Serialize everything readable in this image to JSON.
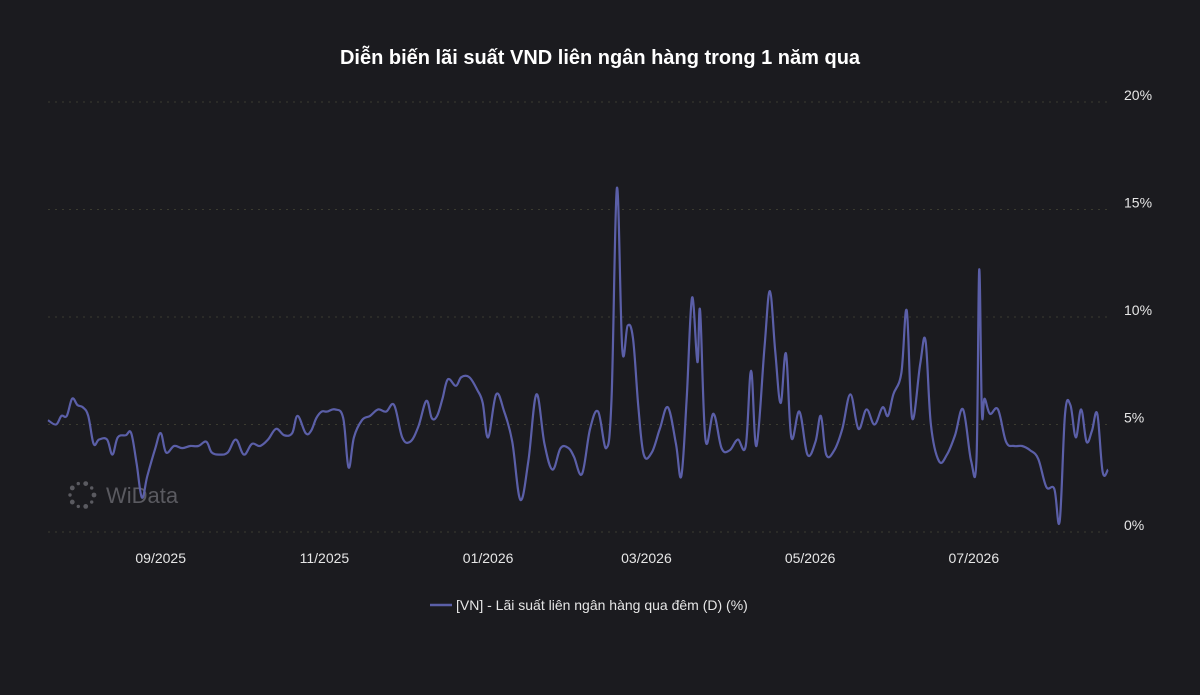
{
  "watermark": {
    "text": "WiData",
    "icon": "dotted-circle-logo-icon"
  },
  "chart_data": {
    "type": "line",
    "title": "Diễn biến lãi suất VND liên ngân hàng trong 1 năm qua",
    "ylim": [
      0,
      20
    ],
    "yticks": [
      {
        "value": 0,
        "label": "0%"
      },
      {
        "value": 5,
        "label": "5%"
      },
      {
        "value": 10,
        "label": "10%"
      },
      {
        "value": 15,
        "label": "15%"
      },
      {
        "value": 20,
        "label": "20%"
      }
    ],
    "xlim": [
      "2025-07-21",
      "2026-08-20"
    ],
    "xticks": [
      {
        "date": "2025-09-01",
        "label": "09/2025"
      },
      {
        "date": "2025-11-01",
        "label": "11/2025"
      },
      {
        "date": "2026-01-01",
        "label": "01/2026"
      },
      {
        "date": "2026-03-01",
        "label": "03/2026"
      },
      {
        "date": "2026-05-01",
        "label": "05/2026"
      },
      {
        "date": "2026-07-01",
        "label": "07/2026"
      }
    ],
    "grid": true,
    "legend_position": "bottom-center",
    "colors": {
      "background": "#1b1b1f",
      "line": "#5b5fa8",
      "grid": "#3b3b30"
    },
    "series": [
      {
        "name": "[VN] - Lãi suất liên ngân hàng qua đêm (D) (%)",
        "color": "#5b5fa8",
        "points": [
          [
            "2025-07-21",
            5.2
          ],
          [
            "2025-07-24",
            5.0
          ],
          [
            "2025-07-26",
            5.4
          ],
          [
            "2025-07-28",
            5.4
          ],
          [
            "2025-07-30",
            6.2
          ],
          [
            "2025-08-01",
            5.9
          ],
          [
            "2025-08-03",
            5.8
          ],
          [
            "2025-08-05",
            5.4
          ],
          [
            "2025-08-07",
            4.1
          ],
          [
            "2025-08-09",
            4.3
          ],
          [
            "2025-08-12",
            4.3
          ],
          [
            "2025-08-14",
            3.6
          ],
          [
            "2025-08-16",
            4.4
          ],
          [
            "2025-08-19",
            4.5
          ],
          [
            "2025-08-21",
            4.6
          ],
          [
            "2025-08-23",
            3.2
          ],
          [
            "2025-08-25",
            1.6
          ],
          [
            "2025-08-27",
            2.6
          ],
          [
            "2025-08-30",
            3.9
          ],
          [
            "2025-09-01",
            4.6
          ],
          [
            "2025-09-03",
            3.7
          ],
          [
            "2025-09-06",
            4.0
          ],
          [
            "2025-09-09",
            3.9
          ],
          [
            "2025-09-12",
            4.0
          ],
          [
            "2025-09-15",
            4.0
          ],
          [
            "2025-09-18",
            4.2
          ],
          [
            "2025-09-20",
            3.7
          ],
          [
            "2025-09-23",
            3.6
          ],
          [
            "2025-09-26",
            3.7
          ],
          [
            "2025-09-29",
            4.3
          ],
          [
            "2025-10-02",
            3.6
          ],
          [
            "2025-10-05",
            4.1
          ],
          [
            "2025-10-08",
            4.0
          ],
          [
            "2025-10-11",
            4.3
          ],
          [
            "2025-10-14",
            4.8
          ],
          [
            "2025-10-17",
            4.5
          ],
          [
            "2025-10-20",
            4.6
          ],
          [
            "2025-10-22",
            5.4
          ],
          [
            "2025-10-25",
            4.6
          ],
          [
            "2025-10-27",
            4.7
          ],
          [
            "2025-10-29",
            5.3
          ],
          [
            "2025-10-31",
            5.6
          ],
          [
            "2025-11-02",
            5.6
          ],
          [
            "2025-11-05",
            5.7
          ],
          [
            "2025-11-08",
            5.3
          ],
          [
            "2025-11-10",
            3.0
          ],
          [
            "2025-11-12",
            4.4
          ],
          [
            "2025-11-15",
            5.2
          ],
          [
            "2025-11-18",
            5.4
          ],
          [
            "2025-11-21",
            5.7
          ],
          [
            "2025-11-24",
            5.6
          ],
          [
            "2025-11-27",
            5.9
          ],
          [
            "2025-11-30",
            4.4
          ],
          [
            "2025-12-03",
            4.2
          ],
          [
            "2025-12-06",
            4.9
          ],
          [
            "2025-12-09",
            6.1
          ],
          [
            "2025-12-11",
            5.3
          ],
          [
            "2025-12-13",
            5.4
          ],
          [
            "2025-12-15",
            6.2
          ],
          [
            "2025-12-17",
            7.1
          ],
          [
            "2025-12-20",
            6.8
          ],
          [
            "2025-12-22",
            7.2
          ],
          [
            "2025-12-25",
            7.2
          ],
          [
            "2025-12-28",
            6.6
          ],
          [
            "2025-12-30",
            6.0
          ],
          [
            "2026-01-01",
            4.4
          ],
          [
            "2026-01-04",
            6.4
          ],
          [
            "2026-01-07",
            5.6
          ],
          [
            "2026-01-10",
            4.2
          ],
          [
            "2026-01-13",
            1.5
          ],
          [
            "2026-01-16",
            3.3
          ],
          [
            "2026-01-19",
            6.4
          ],
          [
            "2026-01-22",
            4.1
          ],
          [
            "2026-01-25",
            2.9
          ],
          [
            "2026-01-28",
            3.9
          ],
          [
            "2026-01-31",
            3.9
          ],
          [
            "2026-02-02",
            3.5
          ],
          [
            "2026-02-05",
            2.7
          ],
          [
            "2026-02-08",
            4.8
          ],
          [
            "2026-02-11",
            5.6
          ],
          [
            "2026-02-14",
            3.9
          ],
          [
            "2026-02-16",
            6.2
          ],
          [
            "2026-02-18",
            16.0
          ],
          [
            "2026-02-20",
            8.5
          ],
          [
            "2026-02-22",
            9.6
          ],
          [
            "2026-02-24",
            9.0
          ],
          [
            "2026-02-26",
            5.8
          ],
          [
            "2026-02-28",
            3.6
          ],
          [
            "2026-03-03",
            3.7
          ],
          [
            "2026-03-06",
            4.8
          ],
          [
            "2026-03-09",
            5.8
          ],
          [
            "2026-03-12",
            4.1
          ],
          [
            "2026-03-14",
            2.6
          ],
          [
            "2026-03-16",
            6.2
          ],
          [
            "2026-03-18",
            10.9
          ],
          [
            "2026-03-20",
            7.9
          ],
          [
            "2026-03-21",
            10.3
          ],
          [
            "2026-03-23",
            4.3
          ],
          [
            "2026-03-26",
            5.5
          ],
          [
            "2026-03-29",
            3.9
          ],
          [
            "2026-04-01",
            3.8
          ],
          [
            "2026-04-04",
            4.3
          ],
          [
            "2026-04-07",
            4.0
          ],
          [
            "2026-04-09",
            7.5
          ],
          [
            "2026-04-11",
            4.0
          ],
          [
            "2026-04-14",
            8.6
          ],
          [
            "2026-04-16",
            11.2
          ],
          [
            "2026-04-18",
            8.4
          ],
          [
            "2026-04-20",
            6.0
          ],
          [
            "2026-04-22",
            8.3
          ],
          [
            "2026-04-24",
            4.4
          ],
          [
            "2026-04-27",
            5.6
          ],
          [
            "2026-04-30",
            3.6
          ],
          [
            "2026-05-03",
            4.2
          ],
          [
            "2026-05-05",
            5.4
          ],
          [
            "2026-05-07",
            3.6
          ],
          [
            "2026-05-10",
            3.8
          ],
          [
            "2026-05-13",
            4.8
          ],
          [
            "2026-05-16",
            6.4
          ],
          [
            "2026-05-19",
            4.8
          ],
          [
            "2026-05-22",
            5.7
          ],
          [
            "2026-05-25",
            5.0
          ],
          [
            "2026-05-28",
            5.8
          ],
          [
            "2026-05-30",
            5.4
          ],
          [
            "2026-06-01",
            6.4
          ],
          [
            "2026-06-04",
            7.4
          ],
          [
            "2026-06-06",
            10.3
          ],
          [
            "2026-06-08",
            5.3
          ],
          [
            "2026-06-11",
            7.8
          ],
          [
            "2026-06-13",
            8.9
          ],
          [
            "2026-06-15",
            5.0
          ],
          [
            "2026-06-18",
            3.3
          ],
          [
            "2026-06-21",
            3.6
          ],
          [
            "2026-06-24",
            4.5
          ],
          [
            "2026-06-27",
            5.7
          ],
          [
            "2026-06-30",
            3.3
          ],
          [
            "2026-07-02",
            3.4
          ],
          [
            "2026-07-03",
            12.2
          ],
          [
            "2026-07-04",
            5.6
          ],
          [
            "2026-07-05",
            6.2
          ],
          [
            "2026-07-07",
            5.5
          ],
          [
            "2026-07-10",
            5.7
          ],
          [
            "2026-07-13",
            4.2
          ],
          [
            "2026-07-16",
            4.0
          ],
          [
            "2026-07-19",
            4.0
          ],
          [
            "2026-07-22",
            3.8
          ],
          [
            "2026-07-25",
            3.4
          ],
          [
            "2026-07-28",
            2.1
          ],
          [
            "2026-07-31",
            2.0
          ],
          [
            "2026-08-02",
            0.5
          ],
          [
            "2026-08-04",
            5.5
          ],
          [
            "2026-08-06",
            5.9
          ],
          [
            "2026-08-08",
            4.4
          ],
          [
            "2026-08-10",
            5.7
          ],
          [
            "2026-08-12",
            4.2
          ],
          [
            "2026-08-14",
            4.7
          ],
          [
            "2026-08-16",
            5.5
          ],
          [
            "2026-08-18",
            2.8
          ],
          [
            "2026-08-20",
            2.9
          ]
        ]
      }
    ]
  }
}
